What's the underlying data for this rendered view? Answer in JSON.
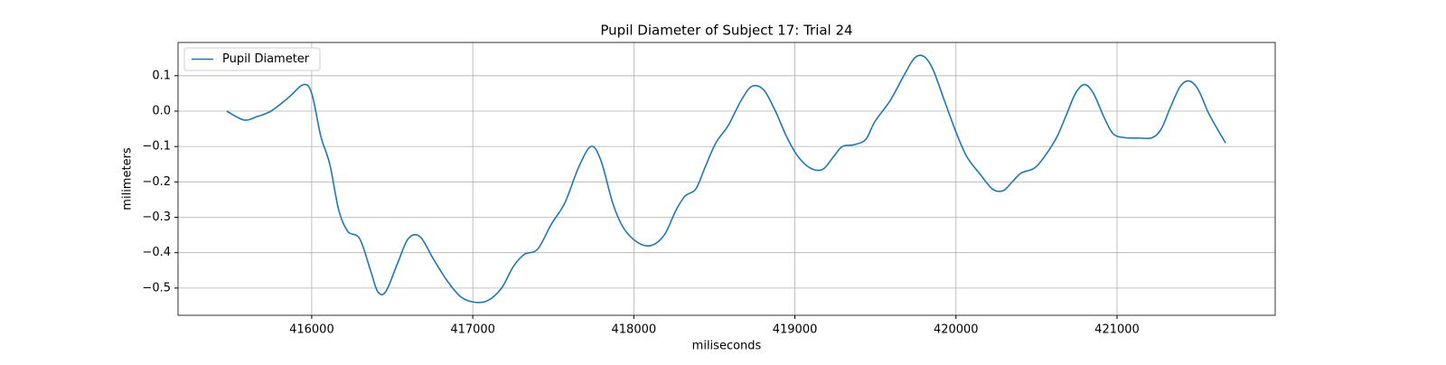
{
  "chart_data": {
    "type": "line",
    "title": "Pupil Diameter of Subject 17: Trial 24",
    "xlabel": "miliseconds",
    "ylabel": "milimeters",
    "xlim": [
      415170,
      421982
    ],
    "ylim": [
      -0.577,
      0.194
    ],
    "xticks": [
      416000,
      417000,
      418000,
      419000,
      420000,
      421000
    ],
    "yticks": [
      0.1,
      {
        "value": 0,
        "label": "0.0"
      },
      {
        "value": -0.1,
        "label": "−0.1"
      },
      {
        "value": -0.2,
        "label": "−0.2"
      },
      {
        "value": -0.3,
        "label": "−0.3"
      },
      {
        "value": -0.4,
        "label": "−0.4"
      },
      {
        "value": -0.5,
        "label": "−0.5"
      }
    ],
    "grid": true,
    "legend": "upper left",
    "x": [
      415472,
      415579,
      415663,
      415747,
      415860,
      415949,
      416000,
      416056,
      416112,
      416168,
      416224,
      416297,
      416365,
      416410,
      416460,
      416533,
      416600,
      416673,
      416758,
      416842,
      416926,
      417010,
      417094,
      417179,
      417251,
      417319,
      417403,
      417487,
      417571,
      417656,
      417734,
      417796,
      417869,
      417936,
      418020,
      418105,
      418189,
      418262,
      418318,
      418385,
      418441,
      418509,
      418587,
      418666,
      418733,
      418806,
      418879,
      418946,
      419014,
      419092,
      419171,
      419238,
      419294,
      419367,
      419440,
      419496,
      419592,
      419676,
      419743,
      419799,
      419855,
      419928,
      420001,
      420069,
      420153,
      420226,
      420293,
      420349,
      420405,
      420490,
      420563,
      420630,
      420686,
      420742,
      420798,
      420854,
      420922,
      420978,
      421051,
      421135,
      421219,
      421275,
      421331,
      421393,
      421449,
      421505,
      421573,
      421674
    ],
    "series": [
      {
        "name": "Pupil Diameter",
        "color": "#1f77b4",
        "values": [
          0.0,
          -0.025,
          -0.015,
          0.0,
          0.04,
          0.075,
          0.05,
          -0.07,
          -0.15,
          -0.28,
          -0.34,
          -0.36,
          -0.45,
          -0.51,
          -0.51,
          -0.43,
          -0.36,
          -0.355,
          -0.42,
          -0.48,
          -0.525,
          -0.54,
          -0.535,
          -0.5,
          -0.44,
          -0.405,
          -0.39,
          -0.32,
          -0.26,
          -0.16,
          -0.1,
          -0.14,
          -0.26,
          -0.33,
          -0.37,
          -0.38,
          -0.35,
          -0.28,
          -0.24,
          -0.22,
          -0.16,
          -0.09,
          -0.04,
          0.03,
          0.07,
          0.06,
          0.0,
          -0.07,
          -0.125,
          -0.16,
          -0.165,
          -0.13,
          -0.1,
          -0.095,
          -0.08,
          -0.03,
          0.03,
          0.1,
          0.15,
          0.155,
          0.12,
          0.03,
          -0.06,
          -0.13,
          -0.18,
          -0.22,
          -0.225,
          -0.2,
          -0.175,
          -0.16,
          -0.12,
          -0.07,
          -0.01,
          0.05,
          0.075,
          0.05,
          -0.02,
          -0.065,
          -0.075,
          -0.076,
          -0.075,
          -0.05,
          0.01,
          0.07,
          0.085,
          0.06,
          -0.01,
          -0.09
        ]
      }
    ]
  }
}
